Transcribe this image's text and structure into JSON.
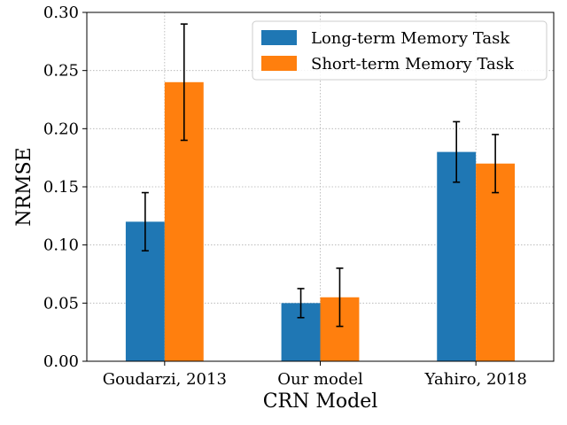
{
  "chart_data": {
    "type": "bar",
    "categories": [
      "Goudarzi, 2013",
      "Our model",
      "Yahiro, 2018"
    ],
    "series": [
      {
        "name": "Long-term Memory Task",
        "color": "#1f77b4",
        "values": [
          0.12,
          0.05,
          0.18
        ],
        "errors": [
          0.025,
          0.0125,
          0.026
        ]
      },
      {
        "name": "Short-term Memory Task",
        "color": "#ff7f0e",
        "values": [
          0.24,
          0.055,
          0.17
        ],
        "errors": [
          0.05,
          0.025,
          0.025
        ]
      }
    ],
    "title": "",
    "xlabel": "CRN Model",
    "ylabel": "NRMSE",
    "ylim": [
      0,
      0.3
    ],
    "yticks": [
      "0.00",
      "0.05",
      "0.10",
      "0.15",
      "0.20",
      "0.25",
      "0.30"
    ],
    "grid": true,
    "legend": "top-right"
  }
}
